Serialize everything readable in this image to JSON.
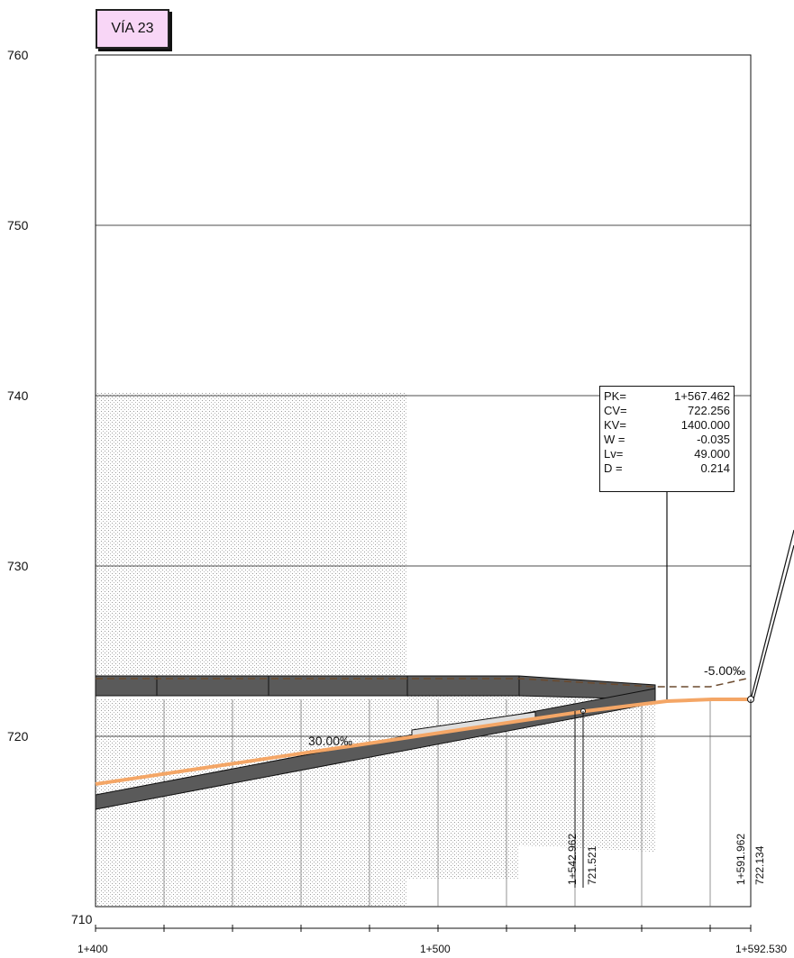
{
  "title": "VÍA 23",
  "y_axis": {
    "ticks": [
      "760",
      "750",
      "740",
      "730",
      "720",
      "710"
    ]
  },
  "x_axis": {
    "ticks": [
      "1+400",
      "1+500",
      "1+592.530"
    ]
  },
  "vertical_curve": {
    "rows": [
      {
        "label": "PK=",
        "value": "1+567.462"
      },
      {
        "label": "CV=",
        "value": "722.256"
      },
      {
        "label": "KV=",
        "value": "1400.000"
      },
      {
        "label": "W =",
        "value": "-0.035"
      },
      {
        "label": "Lv=",
        "value": "49.000"
      },
      {
        "label": "D =",
        "value": "0.214"
      }
    ]
  },
  "grades": {
    "main": "30.00‰",
    "end": "-5.00‰"
  },
  "point_labels": {
    "p1_pk": "1+542.962",
    "p1_cv": "721.521",
    "p2_pk": "1+591.962",
    "p2_cv": "722.134"
  },
  "colors": {
    "grade_line": "#f4a666",
    "structure": "#5a5a5a",
    "tag_bg": "#f8d6f6"
  }
}
